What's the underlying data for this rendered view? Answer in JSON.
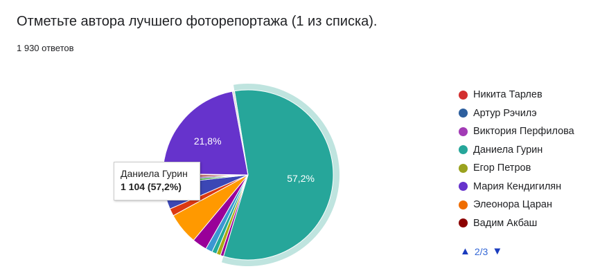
{
  "header": {
    "title": "Отметьте автора лучшего фоторепортажа (1 из списка).",
    "response_count": "1 930 ответов"
  },
  "chart_data": {
    "type": "pie",
    "total": 1930,
    "slices": [
      {
        "name": "Даниела Гурин",
        "value": 57.2,
        "color": "#26a69a",
        "label": "57,2%"
      },
      {
        "name": "",
        "value": 0.6,
        "color": "#990099"
      },
      {
        "name": "",
        "value": 0.8,
        "color": "#aaaa11"
      },
      {
        "name": "",
        "value": 0.9,
        "color": "#22aa99"
      },
      {
        "name": "",
        "value": 1.3,
        "color": "#3b97d3"
      },
      {
        "name": "",
        "value": 2.8,
        "color": "#990099"
      },
      {
        "name": "",
        "value": 6.0,
        "color": "#ff9900"
      },
      {
        "name": "",
        "value": 1.4,
        "color": "#dc3912"
      },
      {
        "name": "",
        "value": 4.8,
        "color": "#3c47b5"
      },
      {
        "name": "",
        "value": 0.6,
        "color": "#109618"
      },
      {
        "name": "",
        "value": 0.5,
        "color": "#5b3d95"
      },
      {
        "name": "",
        "value": 0.6,
        "color": "#8b0707"
      },
      {
        "name": "",
        "value": 0.3,
        "color": "#ff6d00"
      },
      {
        "name": "Мария Кендигилян",
        "value": 21.8,
        "color": "#6633cc",
        "label": "21,8%"
      },
      {
        "name": "",
        "value": 0.4,
        "color": "#dddddd"
      }
    ],
    "highlighted": "Даниела Гурин"
  },
  "legend": {
    "items": [
      {
        "label": "Никита Тарлев",
        "color": "#d32f2f"
      },
      {
        "label": "Артур Рэчилэ",
        "color": "#2d5f9e"
      },
      {
        "label": "Виктория Перфилова",
        "color": "#a23bb5"
      },
      {
        "label": "Даниела Гурин",
        "color": "#26a69a"
      },
      {
        "label": "Егор Петров",
        "color": "#9aa21e"
      },
      {
        "label": "Мария Кендигилян",
        "color": "#6633cc"
      },
      {
        "label": "Элеонора Царан",
        "color": "#ef6c00"
      },
      {
        "label": "Вадим Акбаш",
        "color": "#8b0000"
      }
    ]
  },
  "pager": {
    "up_icon": "triangle-up-icon",
    "text": "2/3",
    "down_icon": "triangle-down-icon"
  },
  "tooltip": {
    "name": "Даниела Гурин",
    "value": "1 104 (57,2%)"
  }
}
